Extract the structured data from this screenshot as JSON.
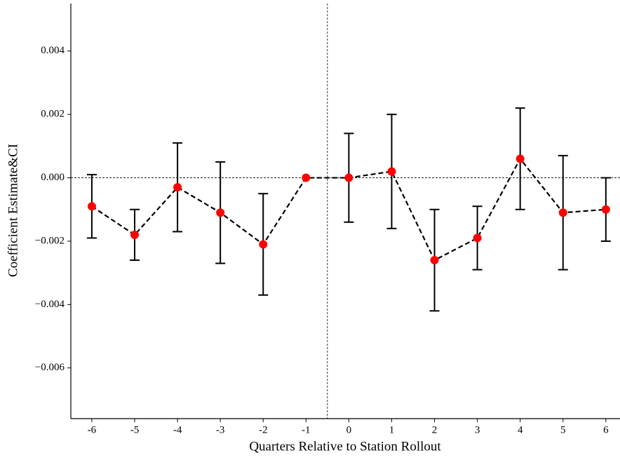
{
  "chart_data": {
    "type": "errorbar",
    "xlabel": "Quarters Relative to Station Rollout",
    "ylabel": "Coefficient Estimate&CI",
    "x": [
      -6,
      -5,
      -4,
      -3,
      -2,
      -1,
      0,
      1,
      2,
      3,
      4,
      5,
      6
    ],
    "series": [
      {
        "color": "#ff0000",
        "values": [
          -0.0009,
          -0.0018,
          -0.0003,
          -0.0011,
          -0.0021,
          0,
          0,
          0.0002,
          -0.0026,
          -0.0019,
          0.0006,
          -0.0011,
          -0.001
        ],
        "errors": [
          0.001,
          0.0008,
          0.0014,
          0.0016,
          0.0016,
          null,
          0.0014,
          0.0018,
          0.0016,
          0.001,
          0.0016,
          0.0018,
          0.001
        ]
      }
    ],
    "xlim": [
      -6.49,
      6.33
    ],
    "ylim": [
      -0.0076,
      0.0055
    ],
    "xticks": [
      -6,
      -5,
      -4,
      -3,
      -2,
      -1,
      0,
      1,
      2,
      3,
      4,
      5,
      6
    ],
    "yticks": [
      {
        "value": -0.006,
        "label": "−0.006"
      },
      {
        "value": -0.004,
        "label": "−0.004"
      },
      {
        "value": -0.002,
        "label": "−0.002"
      },
      {
        "value": 0,
        "label": "0.000"
      },
      0.002,
      0.004
    ],
    "hline": 0,
    "vline": -0.5
  }
}
